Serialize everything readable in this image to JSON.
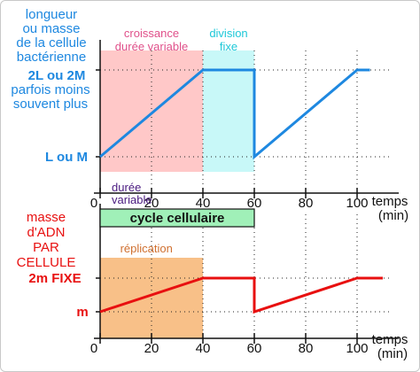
{
  "chart_data": [
    {
      "type": "line",
      "x_unit_label": "temps (min)",
      "xlim": [
        0,
        110
      ],
      "x_ticks": [
        0,
        20,
        40,
        60,
        80,
        100
      ],
      "x_tick_labels": [
        "0",
        "20",
        "40",
        "60",
        "80",
        "100"
      ],
      "y_levels": [
        "L",
        "2L"
      ],
      "ylabel": "longueur ou masse de la cellule bactérienne",
      "y_tick_labels": {
        "high": "2L ou 2M",
        "high_note": "parfois moins souvent plus",
        "low": "L ou M"
      },
      "series": [
        {
          "x": [
            0,
            40,
            60,
            60,
            100,
            105
          ],
          "y": [
            1,
            2,
            2,
            1,
            2,
            2
          ]
        }
      ],
      "phases": [
        {
          "label": "croissance durée variable",
          "x_start": 0,
          "x_end": 40,
          "color": "#ffc8c8",
          "text_color": "#e0508a"
        },
        {
          "label": "division fixe",
          "x_start": 40,
          "x_end": 60,
          "color": "#c8f8f8",
          "text_color": "#1ec8d8"
        }
      ],
      "annotation": "durée variable",
      "grid": "dotted",
      "line_color": "#1e88e0",
      "axis_color": "#111111"
    },
    {
      "type": "line",
      "x_unit_label": "temps (min)",
      "xlim": [
        0,
        110
      ],
      "x_ticks": [
        0,
        20,
        40,
        60,
        80,
        100
      ],
      "x_tick_labels": [
        "0",
        "20",
        "40",
        "60",
        "80",
        "100"
      ],
      "y_levels": [
        "m",
        "2m"
      ],
      "ylabel": "masse d'ADN PAR CELLULE",
      "y_tick_labels": {
        "high": "2m FIXE",
        "low": "m"
      },
      "series": [
        {
          "x": [
            0,
            40,
            60,
            60,
            100,
            110
          ],
          "y": [
            1,
            2,
            2,
            1,
            2,
            2
          ]
        }
      ],
      "phases": [
        {
          "label": "réplication",
          "x_start": 0,
          "x_end": 40,
          "color": "#f8c088",
          "text_color": "#d07030"
        }
      ],
      "cycle_bar": {
        "label": "cycle cellulaire",
        "x_start": 0,
        "x_end": 60,
        "color": "#a0f0b8"
      },
      "grid": "dotted",
      "line_color": "#e81010",
      "axis_color": "#111111"
    }
  ]
}
